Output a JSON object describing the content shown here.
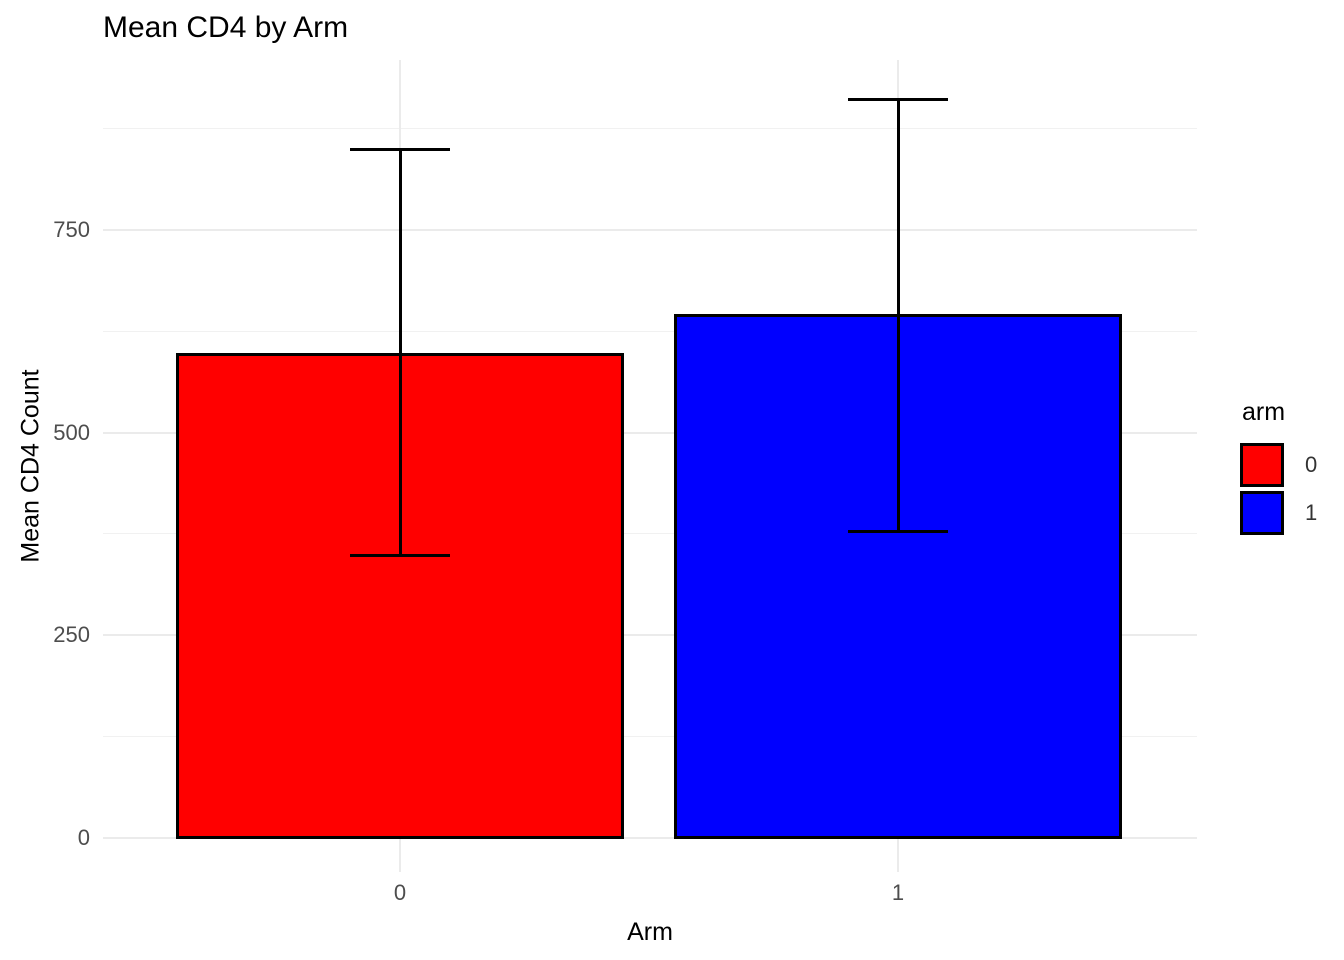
{
  "title": "Mean CD4 by Arm",
  "chart_data": {
    "type": "bar",
    "title": "Mean CD4 by Arm",
    "xlabel": "Arm",
    "ylabel": "Mean CD4 Count",
    "categories": [
      "0",
      "1"
    ],
    "series": [
      {
        "name": "arm",
        "bars": [
          {
            "category": "0",
            "mean": 598,
            "error_lower": 349,
            "error_upper": 850,
            "color": "#ff0000"
          },
          {
            "category": "1",
            "mean": 646,
            "error_lower": 379,
            "error_upper": 911,
            "color": "#0000ff"
          }
        ]
      }
    ],
    "yticks": [
      0,
      250,
      500,
      750
    ],
    "minor_yticks": [
      125,
      375,
      625,
      875
    ],
    "ylim": [
      -42,
      959
    ],
    "grid": true,
    "background": "#ffffff",
    "gridline_color": "#ebebeb",
    "bar_outline_color": "#000000",
    "legend": {
      "title": "arm",
      "position": "right",
      "entries": [
        {
          "label": "0",
          "color": "#ff0000"
        },
        {
          "label": "1",
          "color": "#0000ff"
        }
      ]
    }
  }
}
